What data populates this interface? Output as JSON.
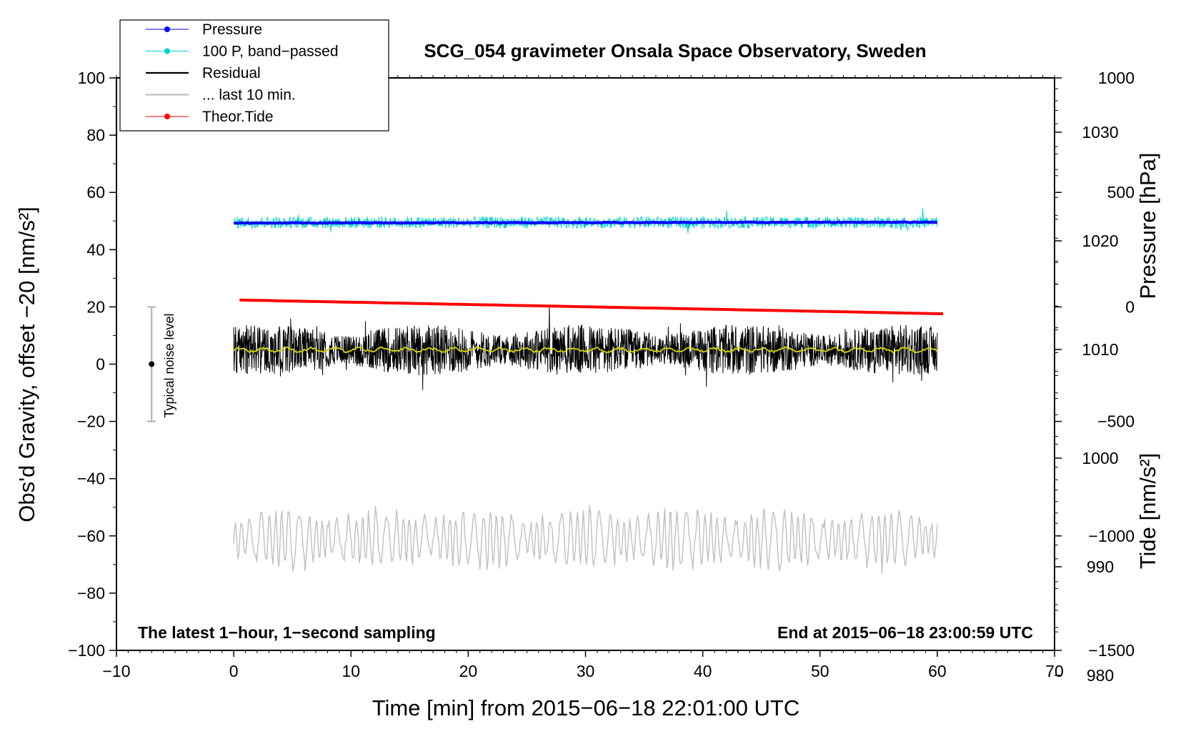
{
  "chart_data": {
    "type": "line",
    "title": "SCG_054 gravimeter Onsala Space Observatory, Sweden",
    "xlabel": "Time [min] from 2015−06−18 22:01:00 UTC",
    "ylabel_left": "Obs'd Gravity, offset −20 [nm/s²]",
    "ylabel_right_pressure": "Pressure [hPa]",
    "ylabel_right_tide": "Tide [nm/s²]",
    "xlim": [
      -10,
      70
    ],
    "ylim_left": [
      -100,
      100
    ],
    "pressure_axis_range": [
      982.3,
      1035.0
    ],
    "tide_axis_range": [
      -1500,
      1000
    ],
    "x_ticks": [
      "−10",
      "0",
      "10",
      "20",
      "30",
      "40",
      "50",
      "60",
      "70"
    ],
    "y_ticks_left": [
      "100",
      "80",
      "60",
      "40",
      "20",
      "0",
      "−20",
      "−40",
      "−60",
      "−80",
      "−100"
    ],
    "pressure_ticks": [
      "1030",
      "1020",
      "1010",
      "1000",
      "990",
      "980"
    ],
    "tide_ticks": [
      "1000",
      "500",
      "0",
      "−500",
      "−1000",
      "−1500"
    ],
    "annotation_left": "The latest 1−hour, 1−second sampling",
    "annotation_right": "End at 2015−06−18 23:00:59 UTC",
    "noise_label": "Typical noise level",
    "noise_bar": {
      "center": 0,
      "low": -20,
      "high": 20,
      "x": -7
    },
    "legend": [
      {
        "label": "Pressure",
        "color": "#0000ff",
        "marker": "dot"
      },
      {
        "label": "100 P, band−passed",
        "color": "#00d0d0",
        "marker": "dot"
      },
      {
        "label": "Residual",
        "color": "#000000",
        "marker": "line"
      },
      {
        "label": "... last 10 min.",
        "color": "#c0c0c0",
        "marker": "line"
      },
      {
        "label": "Theor.Tide",
        "color": "#ff0000",
        "marker": "dot"
      }
    ],
    "series": [
      {
        "name": "Pressure",
        "axis": "left",
        "x_start": 0,
        "x_end": 60,
        "y_start": 49.3,
        "y_end": 49.6,
        "noise_amplitude": 0.6,
        "color": "#0000ff"
      },
      {
        "name": "100 P, band−passed",
        "axis": "left",
        "x_start": 0,
        "x_end": 60,
        "y_mean": 49.5,
        "noise_amplitude": 4.5,
        "color": "#00d0d0"
      },
      {
        "name": "Residual",
        "axis": "left",
        "x_start": 0,
        "x_end": 60,
        "y_mean": 5,
        "noise_amplitude": 16,
        "color": "#000000"
      },
      {
        "name": "Residual smoothed",
        "axis": "left",
        "x_start": 0,
        "x_end": 60,
        "y_mean": 5,
        "noise_amplitude": 1,
        "color": "#d8d800"
      },
      {
        "name": "... last 10 min.",
        "axis": "left",
        "x_start": 0,
        "x_end": 60,
        "y_mean": -61,
        "noise_amplitude": 14,
        "color": "#c0c0c0"
      },
      {
        "name": "Theor.Tide",
        "axis": "tide",
        "x_start": 0.5,
        "x_end": 60.5,
        "y_start": 30,
        "y_end": -30,
        "color": "#ff0000"
      }
    ]
  }
}
